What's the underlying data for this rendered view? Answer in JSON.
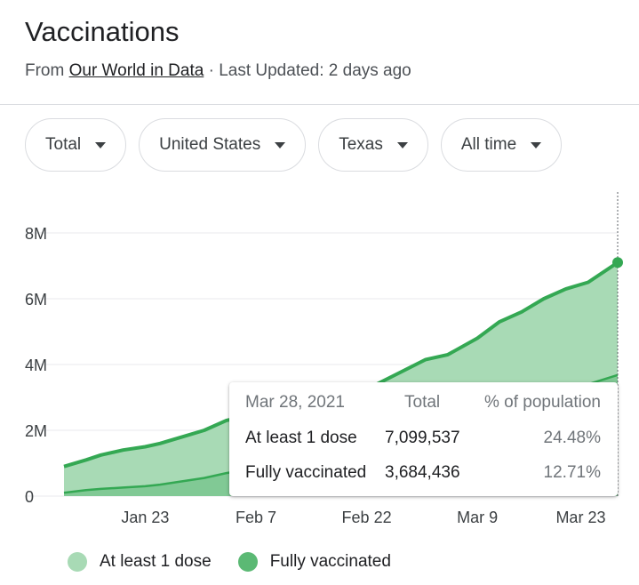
{
  "header": {
    "title": "Vaccinations",
    "from_prefix": "From",
    "source_link": "Our World in Data",
    "updated": "· Last Updated: 2 days ago"
  },
  "filters": [
    {
      "label": "Total"
    },
    {
      "label": "United States"
    },
    {
      "label": "Texas"
    },
    {
      "label": "All time"
    }
  ],
  "tooltip": {
    "date": "Mar 28, 2021",
    "col_total": "Total",
    "col_pct": "% of population",
    "rows": [
      {
        "label": "At least 1 dose",
        "total": "7,099,537",
        "pct": "24.48%"
      },
      {
        "label": "Fully vaccinated",
        "total": "3,684,436",
        "pct": "12.71%"
      }
    ]
  },
  "legend": {
    "items": [
      {
        "label": "At least 1 dose",
        "color": "#a8dab5"
      },
      {
        "label": "Fully vaccinated",
        "color": "#5bb974"
      }
    ]
  },
  "colors": {
    "first_dose_fill": "#a8dab5",
    "first_dose_line": "#34a853",
    "fully_fill": "#81c995",
    "grid": "#e8eaed",
    "axis_text": "#3c4043"
  },
  "chart_data": {
    "type": "area",
    "x_start": "2021-01-12",
    "x": [
      "2021-01-12",
      "2021-01-15",
      "2021-01-17",
      "2021-01-20",
      "2021-01-23",
      "2021-01-25",
      "2021-01-28",
      "2021-01-31",
      "2021-02-03",
      "2021-02-07",
      "2021-02-10",
      "2021-02-14",
      "2021-02-18",
      "2021-02-22",
      "2021-02-26",
      "2021-03-02",
      "2021-03-05",
      "2021-03-09",
      "2021-03-12",
      "2021-03-15",
      "2021-03-18",
      "2021-03-21",
      "2021-03-24",
      "2021-03-28"
    ],
    "series": [
      {
        "name": "At least 1 dose",
        "values": [
          0.9,
          1.1,
          1.25,
          1.4,
          1.5,
          1.6,
          1.8,
          2.0,
          2.3,
          2.5,
          2.7,
          2.9,
          3.0,
          3.25,
          3.7,
          4.15,
          4.3,
          4.8,
          5.3,
          5.6,
          6.0,
          6.3,
          6.5,
          7.1
        ]
      },
      {
        "name": "Fully vaccinated",
        "values": [
          0.1,
          0.18,
          0.22,
          0.26,
          0.3,
          0.35,
          0.45,
          0.55,
          0.7,
          0.85,
          1.0,
          1.15,
          1.3,
          1.45,
          1.65,
          1.9,
          2.05,
          2.35,
          2.6,
          2.85,
          3.05,
          3.25,
          3.4,
          3.68
        ]
      }
    ],
    "x_ticks": [
      "Jan 23",
      "Feb 7",
      "Feb 22",
      "Mar 9",
      "Mar 23"
    ],
    "y_ticks": [
      "0",
      "2M",
      "4M",
      "6M",
      "8M"
    ],
    "ylim": [
      0,
      8
    ],
    "y_unit": "millions",
    "title": "",
    "xlabel": "",
    "ylabel": "",
    "grid": true,
    "legend_position": "bottom",
    "highlight_date": "2021-03-28"
  }
}
